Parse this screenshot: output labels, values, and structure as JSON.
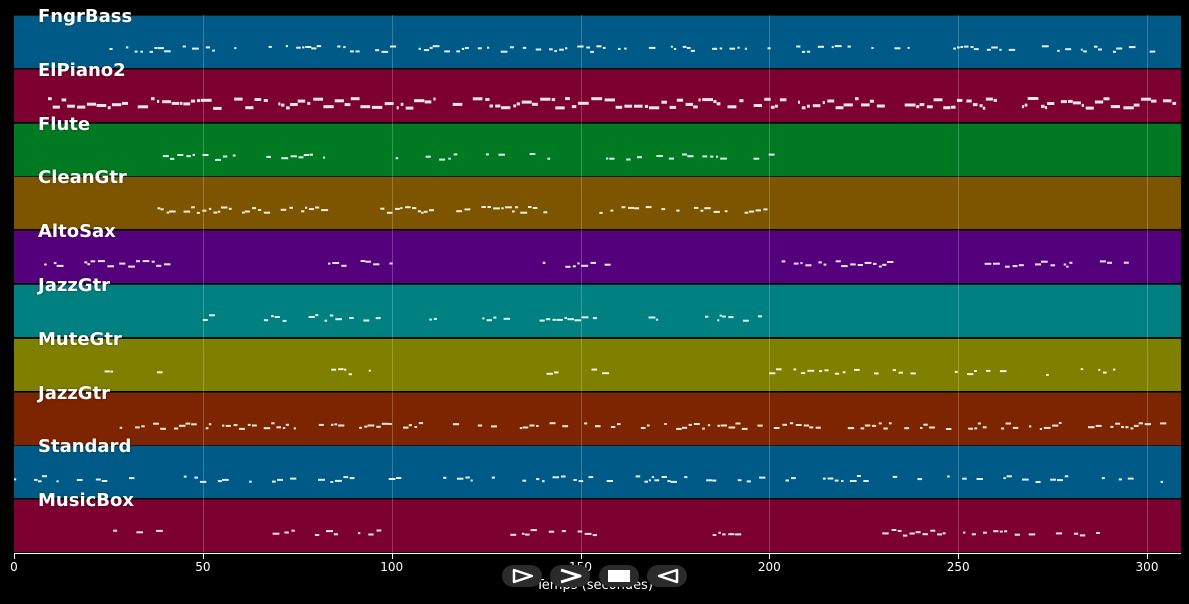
{
  "tracks": [
    {
      "name": "FngrBass",
      "color": "#005a87"
    },
    {
      "name": "ElPiano2",
      "color": "#7c0030"
    },
    {
      "name": "Flute",
      "color": "#007a22"
    },
    {
      "name": "CleanGtr",
      "color": "#7d5500"
    },
    {
      "name": "AltoSax",
      "color": "#54007c"
    },
    {
      "name": "JazzGtr",
      "color": "#008080"
    },
    {
      "name": "MuteGtr",
      "color": "#7f7f00"
    },
    {
      "name": "JazzGtr",
      "color": "#7c2500"
    },
    {
      "name": "Standard",
      "color": "#005a87"
    },
    {
      "name": "MusicBox",
      "color": "#7c0030"
    }
  ],
  "axis": {
    "ticks": [
      "0",
      "50",
      "100",
      "150",
      "200",
      "250",
      "300"
    ],
    "tick_values": [
      0,
      50,
      100,
      150,
      200,
      250,
      300
    ],
    "xmax": 309,
    "label": "Temps (secondes)"
  },
  "controls": [
    {
      "icon": "play-outline-icon"
    },
    {
      "icon": "fast-forward-icon"
    },
    {
      "icon": "stop-icon"
    },
    {
      "icon": "rewind-icon"
    }
  ]
}
